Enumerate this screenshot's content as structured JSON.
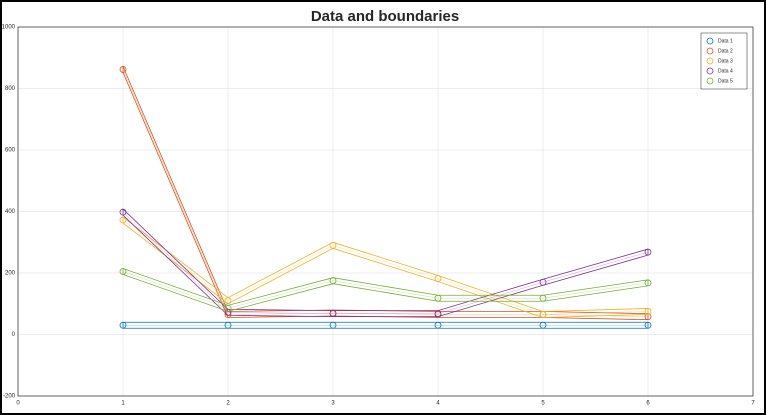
{
  "chart_data": {
    "type": "line",
    "title": "Data and boundaries",
    "x": [
      1,
      2,
      3,
      4,
      5,
      6
    ],
    "series": [
      {
        "name": "Data 1",
        "color": "#0072BD",
        "values": [
          30,
          30,
          30,
          30,
          30,
          30
        ]
      },
      {
        "name": "Data 2",
        "color": "#D95319",
        "values": [
          862,
          65,
          70,
          65,
          65,
          58
        ]
      },
      {
        "name": "Data 3",
        "color": "#EDB120",
        "values": [
          372,
          110,
          290,
          182,
          65,
          75
        ]
      },
      {
        "name": "Data 4",
        "color": "#7E2F8E",
        "values": [
          398,
          72,
          68,
          68,
          170,
          268
        ]
      },
      {
        "name": "Data 5",
        "color": "#77AC30",
        "values": [
          205,
          85,
          175,
          118,
          118,
          168
        ]
      }
    ],
    "xlim": [
      0,
      7
    ],
    "xticks": [
      0,
      1,
      2,
      3,
      4,
      5,
      6,
      7
    ],
    "ylim": [
      -200,
      1000
    ],
    "yticks": [
      -200,
      0,
      200,
      400,
      600,
      800,
      1000
    ],
    "grid": true,
    "legend": "top-right"
  }
}
